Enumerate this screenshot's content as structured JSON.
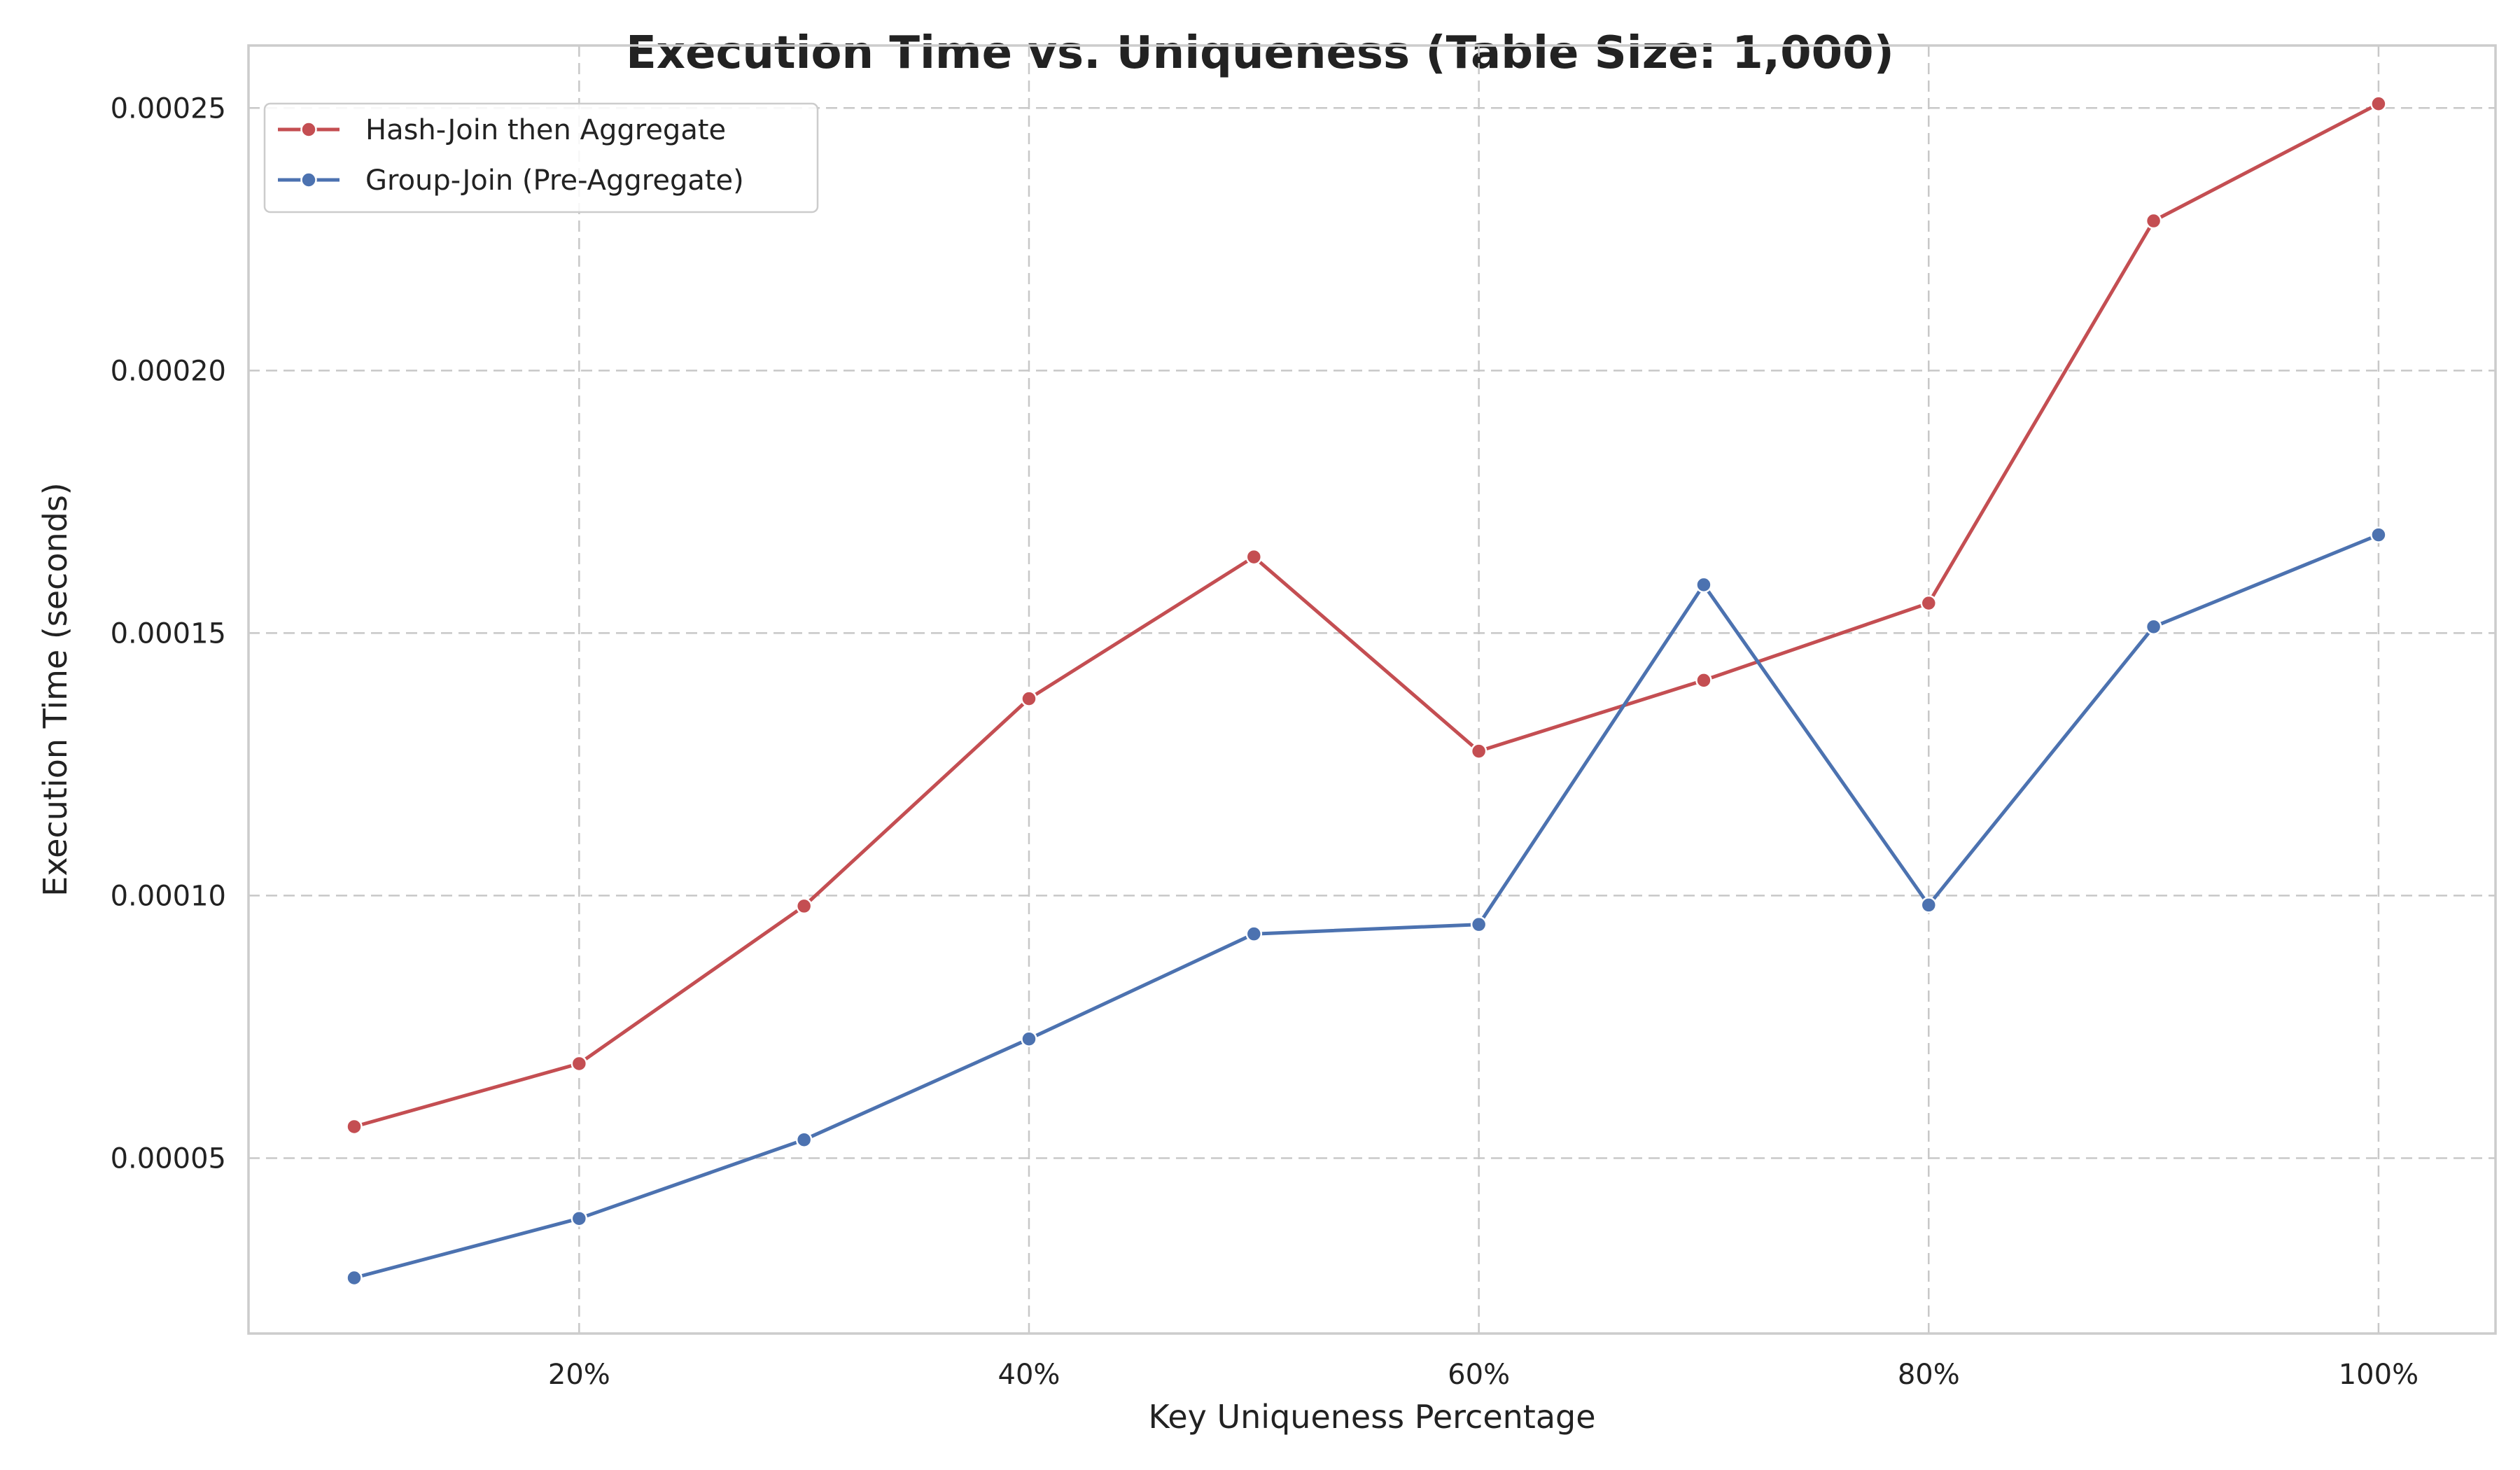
{
  "chart_data": {
    "type": "line",
    "title": "Execution Time vs. Uniqueness (Table Size: 1,000)",
    "xlabel": "Key Uniqueness Percentage",
    "ylabel": "Execution Time (seconds)",
    "x": [
      10,
      20,
      30,
      40,
      50,
      60,
      70,
      80,
      90,
      100
    ],
    "xlim": [
      5.3,
      105.2
    ],
    "ylim": [
      1.66e-05,
      0.0002619
    ],
    "xticks": [
      20,
      40,
      60,
      80,
      100
    ],
    "xtick_labels": [
      "20%",
      "40%",
      "60%",
      "80%",
      "100%"
    ],
    "yticks": [
      5e-05,
      0.0001,
      0.00015,
      0.0002,
      0.00025
    ],
    "ytick_labels": [
      "0.00005",
      "0.00010",
      "0.00015",
      "0.00020",
      "0.00025"
    ],
    "grid": true,
    "legend_position": "top-left",
    "series": [
      {
        "name": "Hash-Join then Aggregate",
        "color": "#c44e52",
        "marker": "circle",
        "values": [
          5.6e-05,
          6.8e-05,
          9.8e-05,
          0.0001375,
          0.0001645,
          0.0001275,
          0.000141,
          0.0001557,
          0.0002285,
          0.0002508
        ]
      },
      {
        "name": "Group-Join (Pre-Aggregate)",
        "color": "#4c72b0",
        "marker": "circle",
        "values": [
          2.72e-05,
          3.85e-05,
          5.35e-05,
          7.27e-05,
          9.27e-05,
          9.45e-05,
          0.0001592,
          9.82e-05,
          0.0001512,
          0.0001687
        ]
      }
    ]
  }
}
